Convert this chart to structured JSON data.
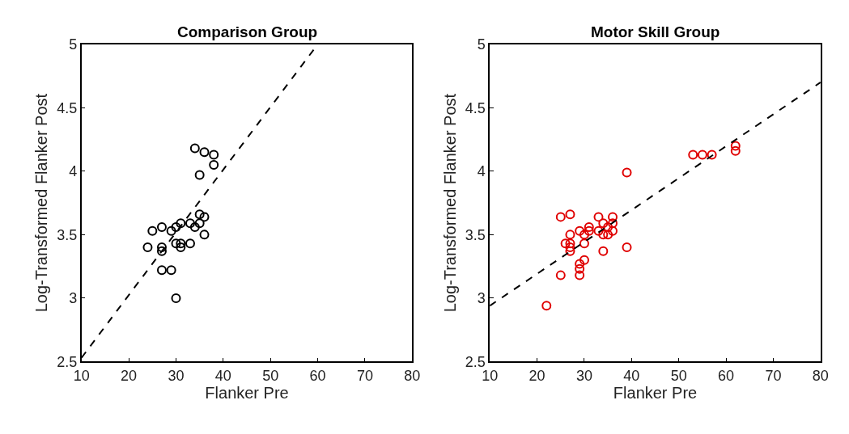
{
  "chart_data": [
    {
      "type": "scatter",
      "title": "Comparison Group",
      "xlabel": "Flanker Pre",
      "ylabel": "Log-Transformed Flanker Post",
      "xlim": [
        10,
        80
      ],
      "xticks": [
        10,
        20,
        30,
        40,
        50,
        60,
        70,
        80
      ],
      "ylim": [
        2.5,
        5
      ],
      "yticks": [
        2.5,
        3,
        3.5,
        4,
        4.5,
        5
      ],
      "series": [
        {
          "marker": "circle",
          "color": "#000000",
          "x": [
            24,
            25,
            27,
            27,
            27,
            27,
            29,
            29,
            30,
            30,
            30,
            31,
            31,
            31,
            33,
            33,
            34,
            34,
            35,
            35,
            35,
            36,
            36,
            36,
            38,
            38
          ],
          "values": [
            3.4,
            3.53,
            3.56,
            3.4,
            3.37,
            3.22,
            3.22,
            3.53,
            3.56,
            3.43,
            3.0,
            3.59,
            3.43,
            3.4,
            3.59,
            3.43,
            3.56,
            4.18,
            3.66,
            3.59,
            3.97,
            3.64,
            3.5,
            4.15,
            4.13,
            4.05
          ]
        },
        {
          "type": "line",
          "line_style": "dashed",
          "color": "#000000",
          "x": [
            10,
            60
          ],
          "values": [
            2.53,
            5.0
          ]
        }
      ]
    },
    {
      "type": "scatter",
      "title": "Motor Skill Group",
      "xlabel": "Flanker Pre",
      "ylabel": "Log-Transformed Flanker Post",
      "xlim": [
        10,
        80
      ],
      "xticks": [
        10,
        20,
        30,
        40,
        50,
        60,
        70,
        80
      ],
      "ylim": [
        2.5,
        5
      ],
      "yticks": [
        2.5,
        3,
        3.5,
        4,
        4.5,
        5
      ],
      "series": [
        {
          "marker": "circle",
          "color": "#e00000",
          "x": [
            22,
            25,
            25,
            26,
            27,
            27,
            27,
            27,
            27,
            29,
            29,
            29,
            29,
            30,
            30,
            30,
            31,
            31,
            33,
            33,
            34,
            34,
            34,
            35,
            35,
            36,
            36,
            36,
            39,
            39,
            53,
            55,
            57,
            62,
            62
          ],
          "values": [
            2.94,
            3.18,
            3.64,
            3.43,
            3.66,
            3.5,
            3.43,
            3.4,
            3.37,
            3.53,
            3.27,
            3.23,
            3.18,
            3.5,
            3.43,
            3.3,
            3.56,
            3.53,
            3.64,
            3.53,
            3.59,
            3.5,
            3.37,
            3.56,
            3.5,
            3.64,
            3.59,
            3.53,
            3.99,
            3.4,
            4.13,
            4.13,
            4.13,
            4.2,
            4.16
          ]
        },
        {
          "type": "line",
          "line_style": "dashed",
          "color": "#000000",
          "x": [
            10,
            80
          ],
          "values": [
            2.94,
            4.7
          ]
        }
      ]
    }
  ]
}
